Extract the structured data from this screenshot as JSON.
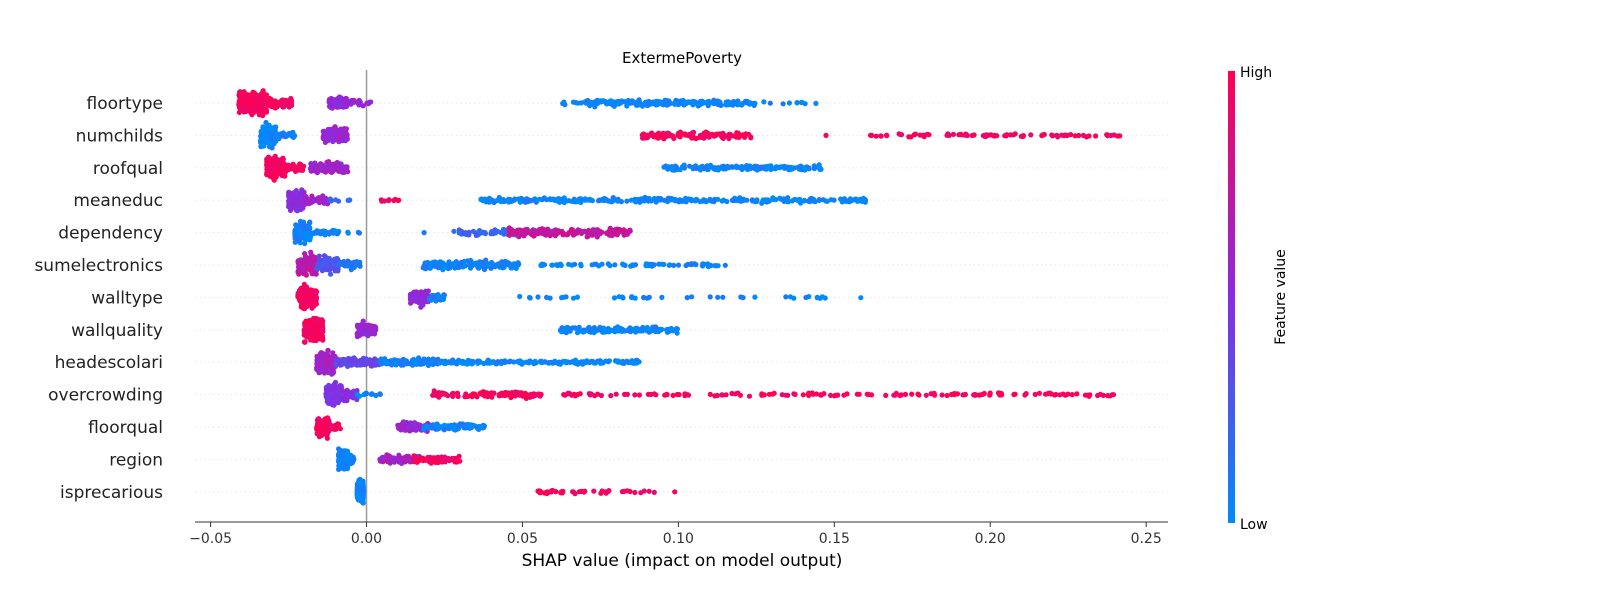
{
  "chart_data": {
    "type": "scatter",
    "subtype": "shap-beeswarm",
    "title": "ExtermePoverty",
    "xlabel": "SHAP value (impact on model output)",
    "ylabel": "",
    "xlim": [
      -0.055,
      0.257
    ],
    "xticks": [
      -0.05,
      0.0,
      0.05,
      0.1,
      0.15,
      0.2,
      0.25
    ],
    "xtick_labels": [
      "−0.05",
      "0.00",
      "0.05",
      "0.10",
      "0.15",
      "0.20",
      "0.25"
    ],
    "zero_line": 0.0,
    "grid": false,
    "colorbar": {
      "title": "Feature value",
      "high_label": "High",
      "low_label": "Low",
      "high_color": "#ff0052",
      "mid_color": "#8a2be2",
      "low_color": "#008bfb",
      "placement": "right"
    },
    "colors": {
      "high": "#ff0052",
      "mid": "#9b30d0",
      "low": "#008bfb",
      "zero_line": "#999999",
      "row_guide": "#e6e6e6"
    },
    "features": [
      {
        "name": "floortype",
        "clusters": [
          {
            "x": [
              -0.041,
              -0.032
            ],
            "v": 0.97,
            "n": 320,
            "spread": 1.0
          },
          {
            "x": [
              -0.032,
              -0.024
            ],
            "v": 0.95,
            "n": 60,
            "spread": 0.45
          },
          {
            "x": [
              -0.012,
              -0.006
            ],
            "v": 0.55,
            "n": 100,
            "spread": 0.55
          },
          {
            "x": [
              -0.006,
              0.002
            ],
            "v": 0.55,
            "n": 20,
            "spread": 0.25
          },
          {
            "x": [
              0.06,
              0.075
            ],
            "v": 0.03,
            "n": 12,
            "spread": 0.15
          },
          {
            "x": [
              0.07,
              0.125
            ],
            "v": 0.03,
            "n": 220,
            "spread": 0.3
          },
          {
            "x": [
              0.126,
              0.147
            ],
            "v": 0.03,
            "n": 10,
            "spread": 0.1
          }
        ]
      },
      {
        "name": "numchilds",
        "clusters": [
          {
            "x": [
              -0.034,
              -0.029
            ],
            "v": 0.03,
            "n": 200,
            "spread": 1.0
          },
          {
            "x": [
              -0.029,
              -0.023
            ],
            "v": 0.05,
            "n": 30,
            "spread": 0.4
          },
          {
            "x": [
              -0.014,
              -0.006
            ],
            "v": 0.55,
            "n": 120,
            "spread": 0.75
          },
          {
            "x": [
              0.088,
              0.124
            ],
            "v": 0.95,
            "n": 120,
            "spread": 0.35
          },
          {
            "x": [
              0.147,
              0.148
            ],
            "v": 0.95,
            "n": 1,
            "spread": 0.0
          },
          {
            "x": [
              0.16,
              0.243
            ],
            "v": 0.95,
            "n": 80,
            "spread": 0.2
          }
        ]
      },
      {
        "name": "roofqual",
        "clusters": [
          {
            "x": [
              -0.032,
              -0.026
            ],
            "v": 0.96,
            "n": 230,
            "spread": 1.0
          },
          {
            "x": [
              -0.026,
              -0.02
            ],
            "v": 0.96,
            "n": 40,
            "spread": 0.4
          },
          {
            "x": [
              -0.018,
              -0.006
            ],
            "v": 0.6,
            "n": 110,
            "spread": 0.55
          },
          {
            "x": [
              0.095,
              0.146
            ],
            "v": 0.03,
            "n": 170,
            "spread": 0.25
          }
        ]
      },
      {
        "name": "meaneduc",
        "clusters": [
          {
            "x": [
              -0.025,
              -0.02
            ],
            "v": 0.5,
            "n": 140,
            "spread": 1.0
          },
          {
            "x": [
              -0.02,
              -0.012
            ],
            "v": 0.6,
            "n": 40,
            "spread": 0.45
          },
          {
            "x": [
              -0.012,
              -0.003
            ],
            "v": 0.2,
            "n": 8,
            "spread": 0.15
          },
          {
            "x": [
              0.004,
              0.011
            ],
            "v": 0.96,
            "n": 10,
            "spread": 0.15
          },
          {
            "x": [
              0.036,
              0.16
            ],
            "v": 0.03,
            "n": 300,
            "spread": 0.25
          }
        ]
      },
      {
        "name": "dependency",
        "clusters": [
          {
            "x": [
              -0.023,
              -0.018
            ],
            "v": 0.05,
            "n": 160,
            "spread": 1.0
          },
          {
            "x": [
              -0.018,
              -0.008
            ],
            "v": 0.05,
            "n": 40,
            "spread": 0.35
          },
          {
            "x": [
              -0.007,
              -0.002
            ],
            "v": 0.05,
            "n": 4,
            "spread": 0.1
          },
          {
            "x": [
              0.018,
              0.019
            ],
            "v": 0.05,
            "n": 1,
            "spread": 0.0
          },
          {
            "x": [
              0.028,
              0.055
            ],
            "v": 0.2,
            "n": 90,
            "spread": 0.3
          },
          {
            "x": [
              0.045,
              0.085
            ],
            "v": 0.75,
            "n": 180,
            "spread": 0.4
          }
        ]
      },
      {
        "name": "sumelectronics",
        "clusters": [
          {
            "x": [
              -0.022,
              -0.016
            ],
            "v": 0.7,
            "n": 160,
            "spread": 1.0
          },
          {
            "x": [
              -0.016,
              -0.009
            ],
            "v": 0.3,
            "n": 100,
            "spread": 0.8
          },
          {
            "x": [
              -0.009,
              -0.002
            ],
            "v": 0.1,
            "n": 40,
            "spread": 0.4
          },
          {
            "x": [
              0.018,
              0.049
            ],
            "v": 0.05,
            "n": 150,
            "spread": 0.45
          },
          {
            "x": [
              0.055,
              0.116
            ],
            "v": 0.03,
            "n": 70,
            "spread": 0.15
          }
        ]
      },
      {
        "name": "walltype",
        "clusters": [
          {
            "x": [
              -0.022,
              -0.016
            ],
            "v": 0.96,
            "n": 190,
            "spread": 1.0
          },
          {
            "x": [
              0.014,
              0.02
            ],
            "v": 0.55,
            "n": 110,
            "spread": 0.75
          },
          {
            "x": [
              0.02,
              0.025
            ],
            "v": 0.08,
            "n": 30,
            "spread": 0.35
          },
          {
            "x": [
              0.049,
              0.161
            ],
            "v": 0.03,
            "n": 42,
            "spread": 0.1
          }
        ]
      },
      {
        "name": "wallquality",
        "clusters": [
          {
            "x": [
              -0.02,
              -0.014
            ],
            "v": 0.96,
            "n": 190,
            "spread": 1.0
          },
          {
            "x": [
              -0.003,
              0.003
            ],
            "v": 0.55,
            "n": 90,
            "spread": 0.65
          },
          {
            "x": [
              0.062,
              0.1
            ],
            "v": 0.03,
            "n": 150,
            "spread": 0.3
          }
        ]
      },
      {
        "name": "headescolari",
        "clusters": [
          {
            "x": [
              -0.016,
              -0.01
            ],
            "v": 0.6,
            "n": 220,
            "spread": 1.0
          },
          {
            "x": [
              -0.01,
              0.004
            ],
            "v": 0.35,
            "n": 120,
            "spread": 0.45
          },
          {
            "x": [
              0.004,
              0.023
            ],
            "v": 0.05,
            "n": 120,
            "spread": 0.35
          },
          {
            "x": [
              0.023,
              0.088
            ],
            "v": 0.03,
            "n": 180,
            "spread": 0.2
          }
        ]
      },
      {
        "name": "overcrowding",
        "clusters": [
          {
            "x": [
              -0.013,
              -0.008
            ],
            "v": 0.45,
            "n": 220,
            "spread": 1.0
          },
          {
            "x": [
              -0.008,
              -0.003
            ],
            "v": 0.5,
            "n": 50,
            "spread": 0.5
          },
          {
            "x": [
              -0.003,
              0.005
            ],
            "v": 0.05,
            "n": 14,
            "spread": 0.15
          },
          {
            "x": [
              0.021,
              0.056
            ],
            "v": 0.96,
            "n": 110,
            "spread": 0.3
          },
          {
            "x": [
              0.063,
              0.24
            ],
            "v": 0.96,
            "n": 150,
            "spread": 0.15
          }
        ]
      },
      {
        "name": "floorqual",
        "clusters": [
          {
            "x": [
              -0.016,
              -0.012
            ],
            "v": 0.96,
            "n": 150,
            "spread": 1.0
          },
          {
            "x": [
              -0.012,
              -0.008
            ],
            "v": 0.96,
            "n": 20,
            "spread": 0.3
          },
          {
            "x": [
              0.01,
              0.02
            ],
            "v": 0.55,
            "n": 70,
            "spread": 0.5
          },
          {
            "x": [
              0.018,
              0.038
            ],
            "v": 0.04,
            "n": 100,
            "spread": 0.3
          }
        ]
      },
      {
        "name": "region",
        "clusters": [
          {
            "x": [
              -0.009,
              -0.006
            ],
            "v": 0.04,
            "n": 150,
            "spread": 1.0
          },
          {
            "x": [
              -0.006,
              -0.004
            ],
            "v": 0.04,
            "n": 30,
            "spread": 0.4
          },
          {
            "x": [
              0.004,
              0.017
            ],
            "v": 0.62,
            "n": 80,
            "spread": 0.45
          },
          {
            "x": [
              0.015,
              0.03
            ],
            "v": 0.96,
            "n": 70,
            "spread": 0.3
          }
        ]
      },
      {
        "name": "isprecarious",
        "clusters": [
          {
            "x": [
              -0.003,
              -0.001
            ],
            "v": 0.03,
            "n": 240,
            "spread": 1.0
          },
          {
            "x": [
              0.054,
              0.094
            ],
            "v": 0.95,
            "n": 40,
            "spread": 0.15
          },
          {
            "x": [
              0.098,
              0.099
            ],
            "v": 0.95,
            "n": 1,
            "spread": 0.0
          }
        ]
      }
    ]
  }
}
